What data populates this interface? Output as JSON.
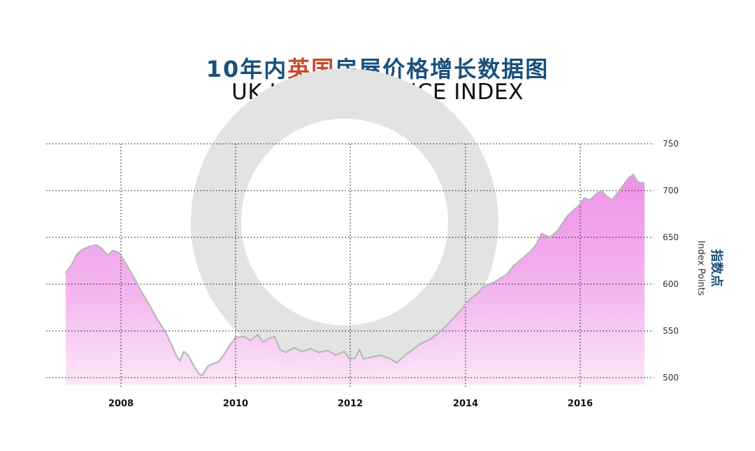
{
  "title_cn": {
    "before": "10年内",
    "highlight": "英国",
    "after": "房屋价格增长数据图"
  },
  "title_en": "UK HOUSING PRICE INDEX",
  "colors": {
    "title_cn": "#1a4f7a",
    "title_highlight": "#c9472a",
    "area_top": "#ef8ce8",
    "area_bottom": "#fbe6f8",
    "line": "#b8b8b8",
    "watermark": "#e3e3e3"
  },
  "chart_data": {
    "type": "area",
    "ylabel_cn": "指数点",
    "ylabel_en": "Index Points",
    "xlabel": "",
    "ylim": [
      500,
      750
    ],
    "yticks": [
      500,
      550,
      600,
      650,
      700,
      750
    ],
    "xlim": [
      2007.0,
      2017.5
    ],
    "xticks": [
      2008,
      2010,
      2012,
      2014,
      2016
    ],
    "grid": true,
    "grid_style": "dotted",
    "y_axis_position": "right",
    "series": [
      {
        "points": [
          [
            2007.0,
            612
          ],
          [
            2007.1,
            620
          ],
          [
            2007.2,
            632
          ],
          [
            2007.3,
            637
          ],
          [
            2007.42,
            640
          ],
          [
            2007.55,
            642
          ],
          [
            2007.65,
            638
          ],
          [
            2007.75,
            631
          ],
          [
            2007.85,
            636
          ],
          [
            2007.95,
            634
          ],
          [
            2008.05,
            625
          ],
          [
            2008.2,
            610
          ],
          [
            2008.35,
            593
          ],
          [
            2008.5,
            578
          ],
          [
            2008.65,
            562
          ],
          [
            2008.8,
            548
          ],
          [
            2008.9,
            535
          ],
          [
            2009.0,
            522
          ],
          [
            2009.05,
            518
          ],
          [
            2009.12,
            528
          ],
          [
            2009.2,
            524
          ],
          [
            2009.28,
            515
          ],
          [
            2009.38,
            505
          ],
          [
            2009.45,
            502
          ],
          [
            2009.55,
            512
          ],
          [
            2009.65,
            515
          ],
          [
            2009.75,
            517
          ],
          [
            2009.85,
            525
          ],
          [
            2009.95,
            535
          ],
          [
            2010.05,
            543
          ],
          [
            2010.2,
            544
          ],
          [
            2010.32,
            540
          ],
          [
            2010.45,
            546
          ],
          [
            2010.55,
            538
          ],
          [
            2010.65,
            542
          ],
          [
            2010.75,
            544
          ],
          [
            2010.85,
            530
          ],
          [
            2010.95,
            527
          ],
          [
            2011.1,
            532
          ],
          [
            2011.25,
            528
          ],
          [
            2011.4,
            531
          ],
          [
            2011.55,
            527
          ],
          [
            2011.7,
            529
          ],
          [
            2011.85,
            524
          ],
          [
            2012.0,
            528
          ],
          [
            2012.1,
            520
          ],
          [
            2012.2,
            521
          ],
          [
            2012.28,
            530
          ],
          [
            2012.35,
            520
          ],
          [
            2012.5,
            522
          ],
          [
            2012.65,
            524
          ],
          [
            2012.8,
            521
          ],
          [
            2012.95,
            516
          ],
          [
            2013.1,
            524
          ],
          [
            2013.25,
            531
          ],
          [
            2013.4,
            537
          ],
          [
            2013.55,
            541
          ],
          [
            2013.7,
            548
          ],
          [
            2013.85,
            556
          ],
          [
            2014.0,
            566
          ],
          [
            2014.1,
            572
          ],
          [
            2014.2,
            580
          ],
          [
            2014.3,
            586
          ],
          [
            2014.4,
            590
          ],
          [
            2014.5,
            597
          ],
          [
            2014.6,
            600
          ],
          [
            2014.7,
            602
          ],
          [
            2014.8,
            606
          ],
          [
            2014.92,
            610
          ],
          [
            2015.05,
            620
          ],
          [
            2015.2,
            627
          ],
          [
            2015.35,
            635
          ],
          [
            2015.45,
            642
          ],
          [
            2015.55,
            654
          ],
          [
            2015.7,
            650
          ],
          [
            2015.85,
            658
          ],
          [
            2016.0,
            672
          ],
          [
            2016.1,
            678
          ],
          [
            2016.2,
            683
          ],
          [
            2016.32,
            692
          ],
          [
            2016.42,
            690
          ],
          [
            2016.52,
            696
          ],
          [
            2016.62,
            700
          ],
          [
            2016.72,
            694
          ],
          [
            2016.82,
            690
          ],
          [
            2016.92,
            698
          ],
          [
            2017.02,
            706
          ],
          [
            2017.12,
            714
          ],
          [
            2017.2,
            717
          ],
          [
            2017.28,
            709
          ],
          [
            2017.4,
            708
          ]
        ]
      }
    ]
  }
}
